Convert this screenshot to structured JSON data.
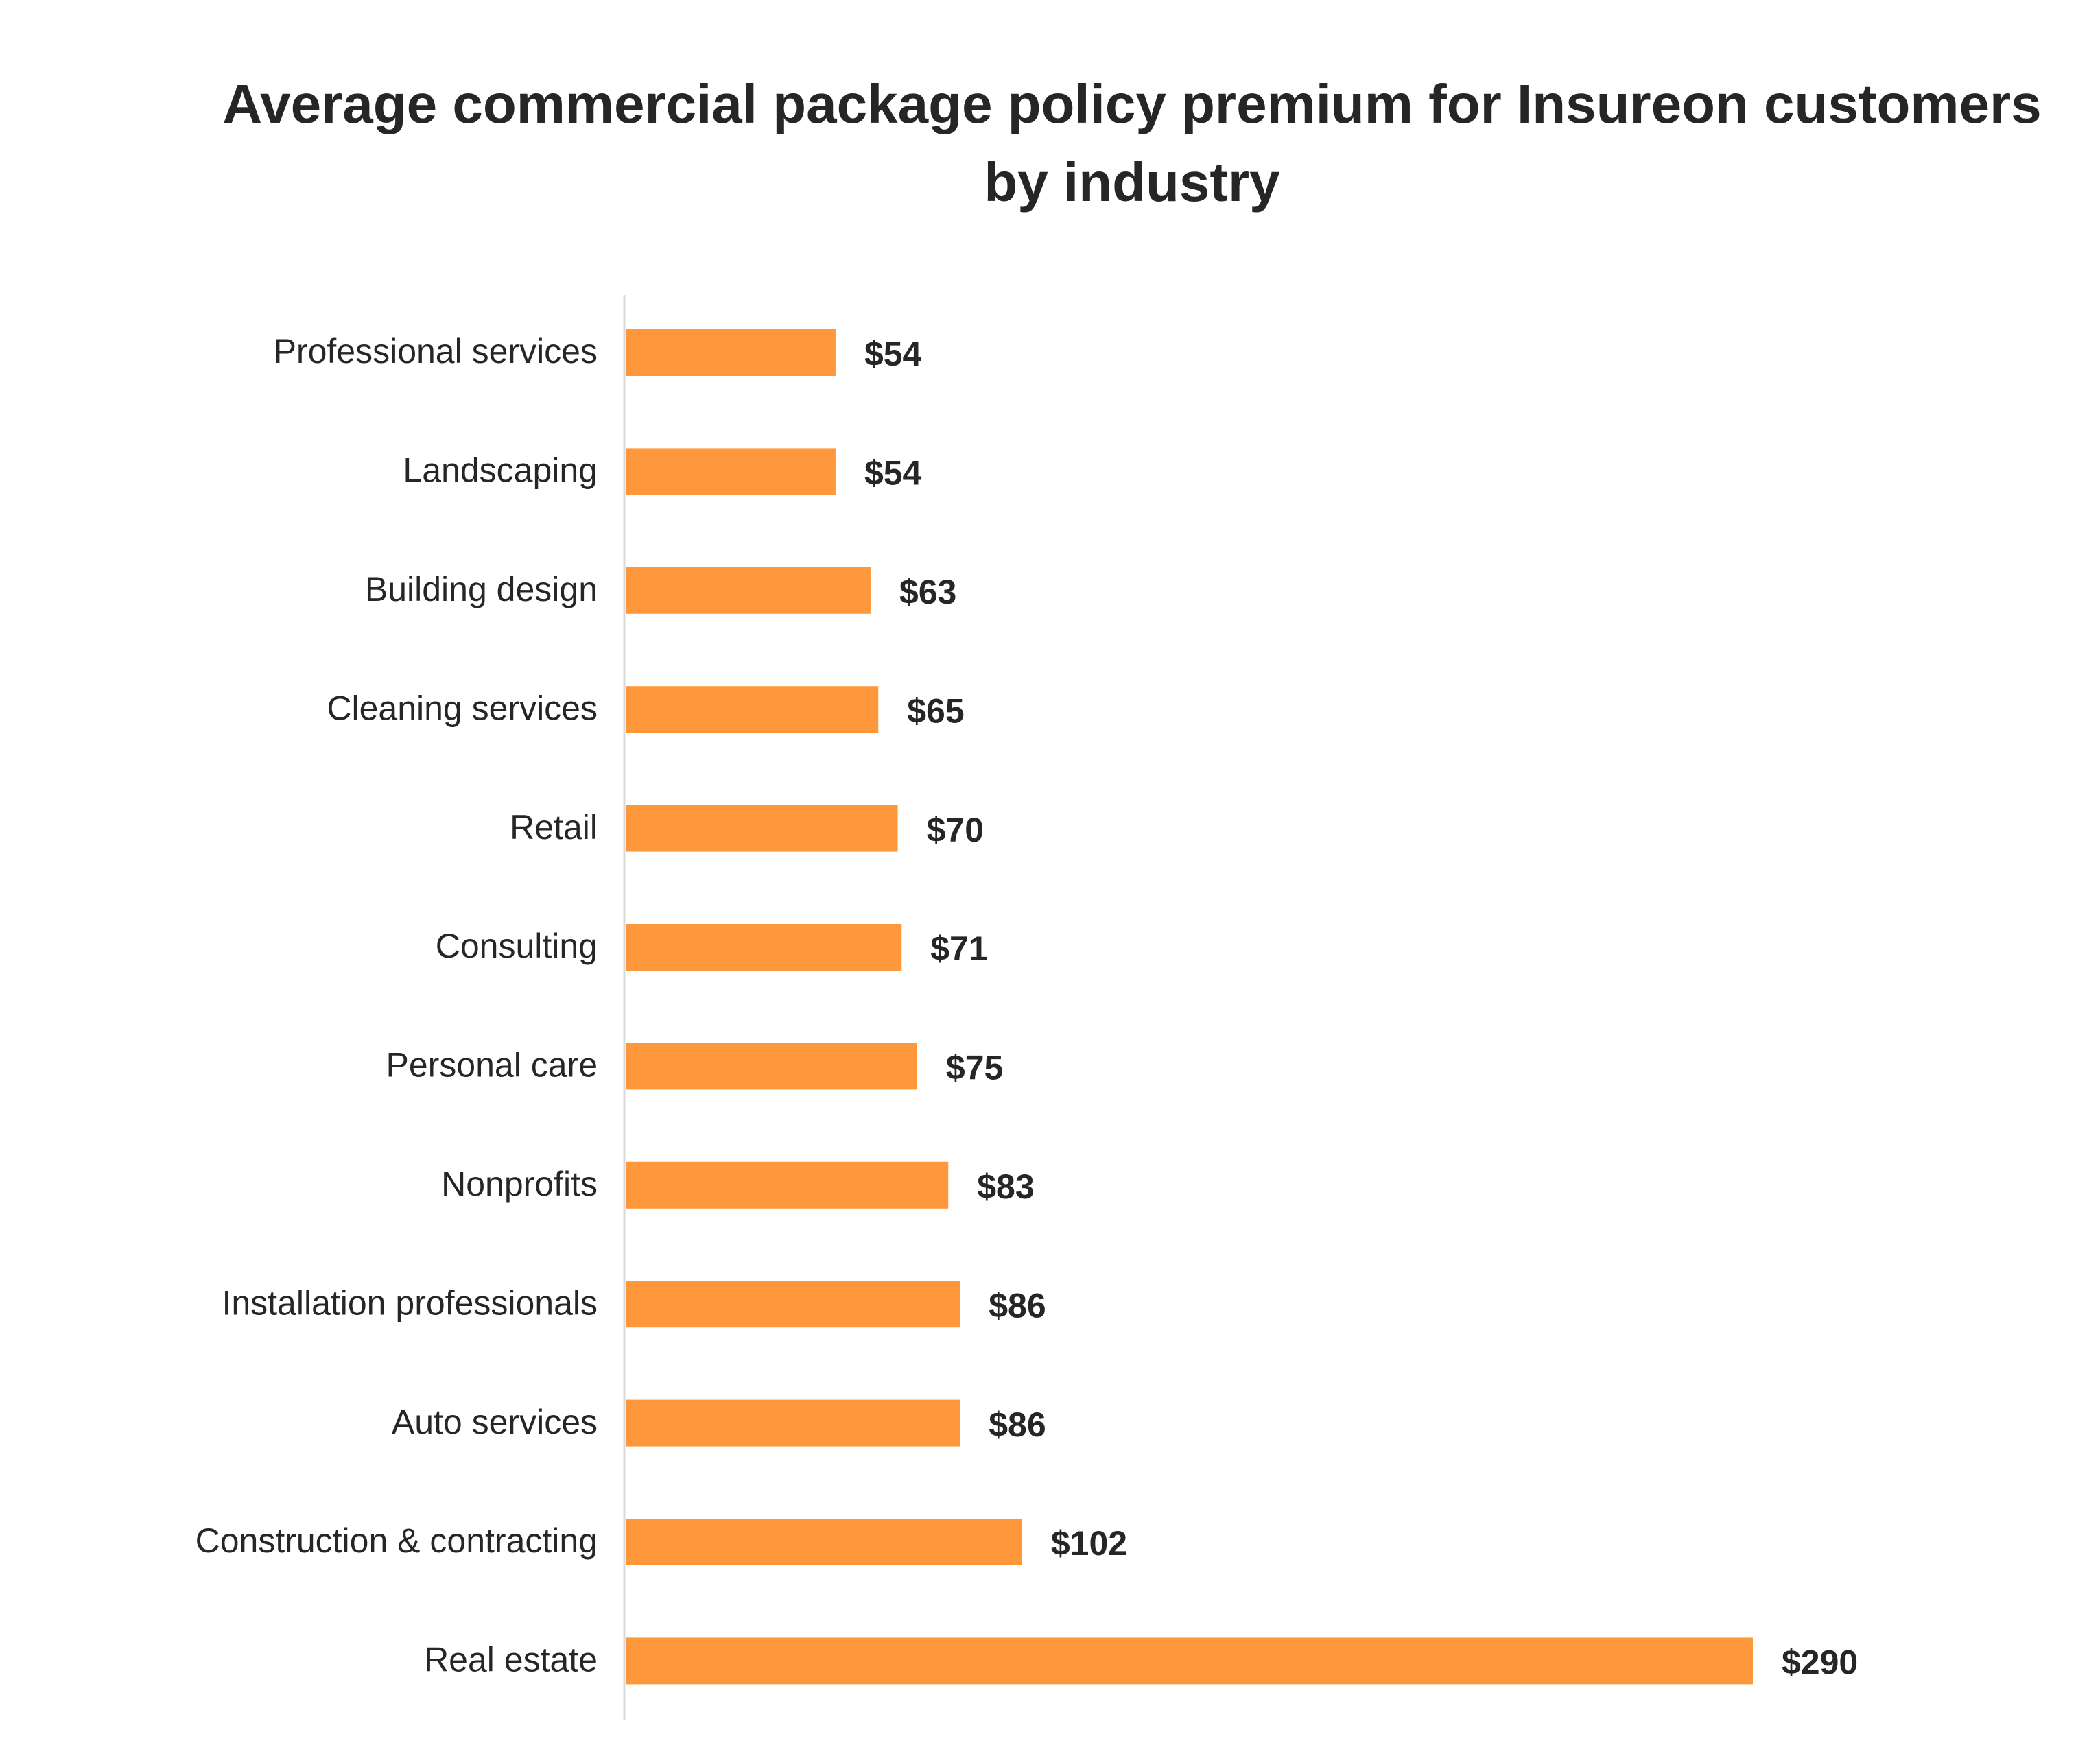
{
  "chart_data": {
    "type": "bar",
    "orientation": "horizontal",
    "title": "Average commercial package policy premium for Insureon customers by industry",
    "categories": [
      "Professional services",
      "Landscaping",
      "Building design",
      "Cleaning services",
      "Retail",
      "Consulting",
      "Personal care",
      "Nonprofits",
      "Installation professionals",
      "Auto services",
      "Construction & contracting",
      "Real estate"
    ],
    "values": [
      54,
      54,
      63,
      65,
      70,
      71,
      75,
      83,
      86,
      86,
      102,
      290
    ],
    "data_labels": [
      "$54",
      "$54",
      "$63",
      "$65",
      "$70",
      "$71",
      "$75",
      "$83",
      "$86",
      "$86",
      "$102",
      "$290"
    ],
    "xlabel": "",
    "ylabel": "",
    "grid": false,
    "legend": "none",
    "bar_color": "#FF973C",
    "axis_color": "#D9D9D9"
  }
}
